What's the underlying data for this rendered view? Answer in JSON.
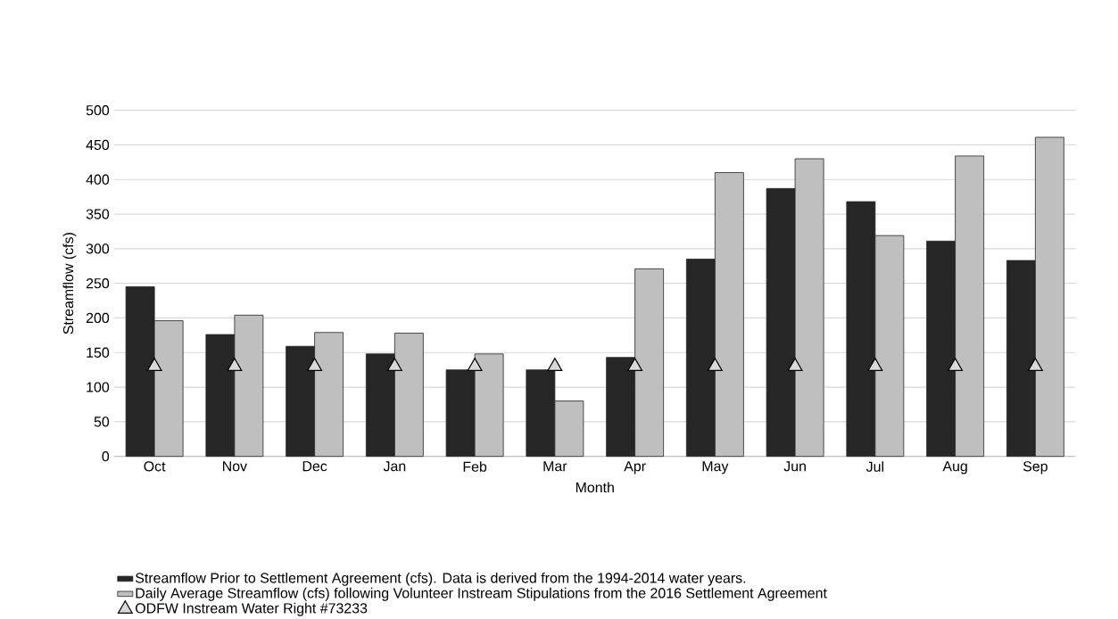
{
  "chart_data": {
    "type": "bar",
    "xlabel": "Month",
    "ylabel": "Streamflow (cfs)",
    "categories": [
      "Oct",
      "Nov",
      "Dec",
      "Jan",
      "Feb",
      "Mar",
      "Apr",
      "May",
      "Jun",
      "Jul",
      "Aug",
      "Sep"
    ],
    "series": [
      {
        "name": "Streamflow Prior to Settlement Agreement (cfs). Data is derived from the 1994-2014 water years.",
        "color": "#262626",
        "values": [
          245,
          176,
          159,
          148,
          125,
          125,
          143,
          285,
          387,
          368,
          311,
          283
        ]
      },
      {
        "name": "Daily Average Streamflow (cfs) following Volunteer Instream Stipulations from the 2016 Settlement Agreement",
        "color": "#bfbfbf",
        "values": [
          196,
          204,
          179,
          178,
          148,
          80,
          271,
          410,
          430,
          319,
          434,
          461
        ]
      },
      {
        "name": "ODFW Instream Water Right #73233",
        "type": "scatter",
        "marker": "triangle",
        "color": "#d9d9d9",
        "x": [
          "Oct",
          "Nov",
          "Dec",
          "Jan",
          "Feb",
          "Mar",
          "Apr",
          "May",
          "Jun",
          "Jul",
          "Aug",
          "Sep"
        ],
        "values": [
          130,
          130,
          130,
          130,
          130,
          130,
          130,
          130,
          130,
          130,
          130,
          130
        ]
      }
    ],
    "ylim": [
      0,
      500
    ],
    "yticks": [
      0,
      50,
      100,
      150,
      200,
      250,
      300,
      350,
      400,
      450,
      500
    ],
    "grid": "y",
    "legend": "bottom"
  }
}
